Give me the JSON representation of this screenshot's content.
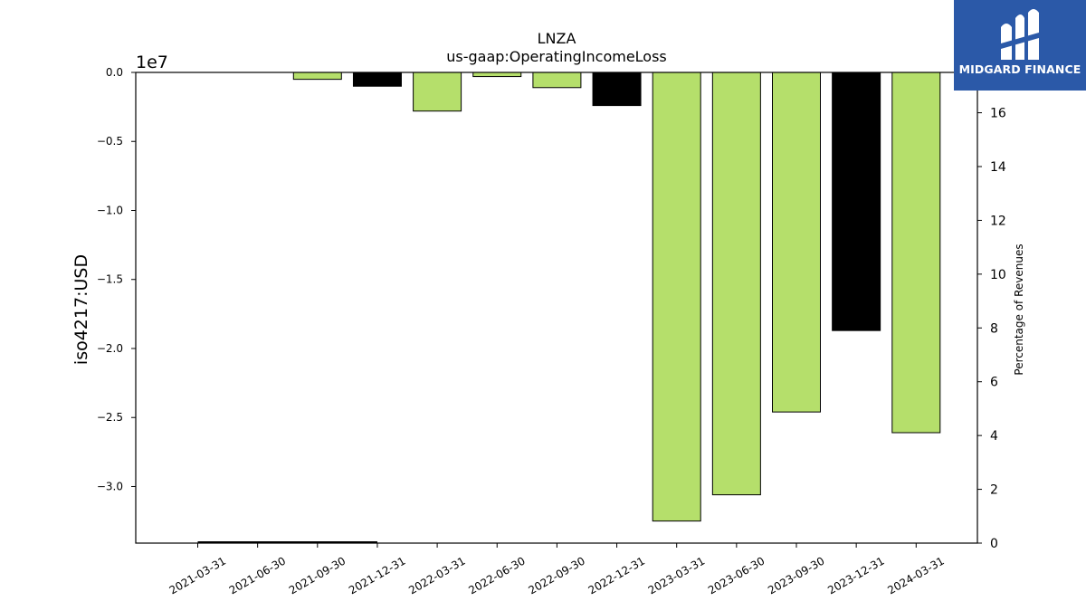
{
  "logo": {
    "text": "MIDGARD FINANCE"
  },
  "chart_data": {
    "type": "bar",
    "title": "LNZA",
    "subtitle": "us-gaap:OperatingIncomeLoss",
    "ylabel": "iso4217:USD",
    "y_offset_label": "1e7",
    "y2label": "Percentage of Revenues",
    "categories": [
      "2021-03-31",
      "2021-06-30",
      "2021-09-30",
      "2021-12-31",
      "2022-03-31",
      "2022-06-30",
      "2022-09-30",
      "2022-12-31",
      "2023-03-31",
      "2023-06-30",
      "2023-09-30",
      "2023-12-31",
      "2024-03-31"
    ],
    "series": [
      {
        "values": [
          null,
          null,
          -500000,
          -1000000,
          -2800000,
          -300000,
          -1100000,
          -2400000,
          -32500000,
          -30600000,
          -24600000,
          -18700000,
          -26100000
        ],
        "colors": [
          "#b5df6b",
          "#b5df6b",
          "#b5df6b",
          "#000000",
          "#b5df6b",
          "#b5df6b",
          "#b5df6b",
          "#000000",
          "#b5df6b",
          "#b5df6b",
          "#b5df6b",
          "#000000",
          "#b5df6b"
        ]
      }
    ],
    "ylim": [
      -34100000,
      0
    ],
    "yticks": [
      0,
      -5000000,
      -10000000,
      -15000000,
      -20000000,
      -25000000,
      -30000000
    ],
    "ytick_labels": [
      "0.0",
      "−0.5",
      "−1.0",
      "−1.5",
      "−2.0",
      "−2.5",
      "−3.0"
    ],
    "y2lim": [
      0,
      17.5
    ],
    "y2ticks": [
      0,
      2,
      4,
      6,
      8,
      10,
      12,
      14,
      16
    ],
    "y2tick_labels": [
      "0",
      "2",
      "4",
      "6",
      "8",
      "10",
      "12",
      "14",
      "16"
    ],
    "secondary_line": {
      "x_from": "2021-03-31",
      "x_to": "2021-12-31",
      "value": 0
    },
    "grid": false,
    "colors": {
      "green": "#b5df6b",
      "black": "#000000"
    }
  }
}
